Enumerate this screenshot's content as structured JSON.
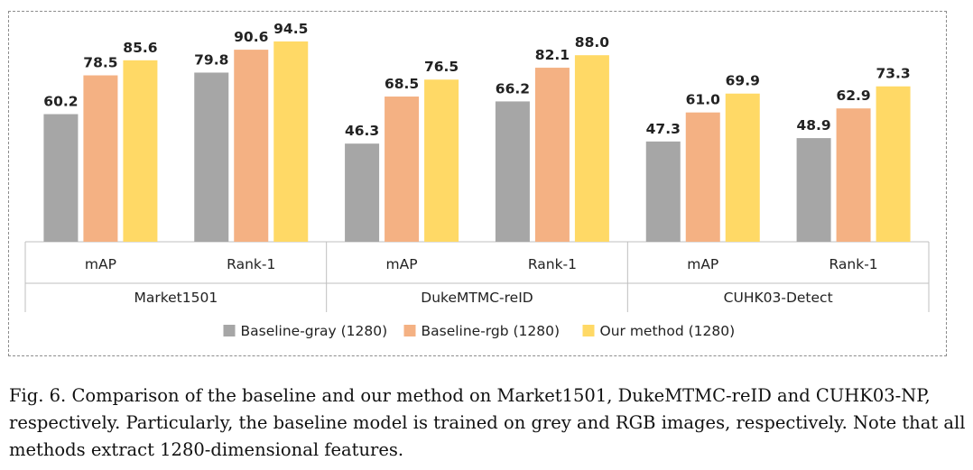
{
  "chart_data": {
    "type": "bar",
    "groups": [
      {
        "label": "Market1501",
        "categories": [
          "mAP",
          "Rank-1"
        ]
      },
      {
        "label": "DukeMTMC-reID",
        "categories": [
          "mAP",
          "Rank-1"
        ]
      },
      {
        "label": "CUHK03-Detect",
        "categories": [
          "mAP",
          "Rank-1"
        ]
      }
    ],
    "series": [
      {
        "name": "Baseline-gray (1280)",
        "color": "#a6a6a6",
        "values": [
          60.2,
          79.8,
          46.3,
          66.2,
          47.3,
          48.9
        ]
      },
      {
        "name": "Baseline-rgb (1280)",
        "color": "#f4b183",
        "values": [
          78.5,
          90.6,
          68.5,
          82.1,
          61.0,
          62.9
        ]
      },
      {
        "name": "Our method (1280)",
        "color": "#ffd966",
        "values": [
          85.6,
          94.5,
          76.5,
          88.0,
          69.9,
          73.3
        ]
      }
    ],
    "value_labels": [
      [
        "60.2",
        "79.8",
        "46.3",
        "66.2",
        "47.3",
        "48.9"
      ],
      [
        "78.5",
        "90.6",
        "68.5",
        "82.1",
        "61.0",
        "62.9"
      ],
      [
        "85.6",
        "94.5",
        "76.5",
        "88.0",
        "69.9",
        "73.3"
      ]
    ],
    "ylim": [
      0,
      100
    ],
    "grid": false,
    "legend_position": "bottom",
    "title": "",
    "xlabel": "",
    "ylabel": ""
  },
  "caption": {
    "lines": [
      "Fig. 6.  Comparison of the baseline and our method on Market1501, DukeMTMC-reID and CUHK03-NP,",
      "respectively. Particularly, the baseline model is trained on grey and RGB images, respectively. Note that all",
      "methods extract 1280-dimensional features."
    ]
  }
}
